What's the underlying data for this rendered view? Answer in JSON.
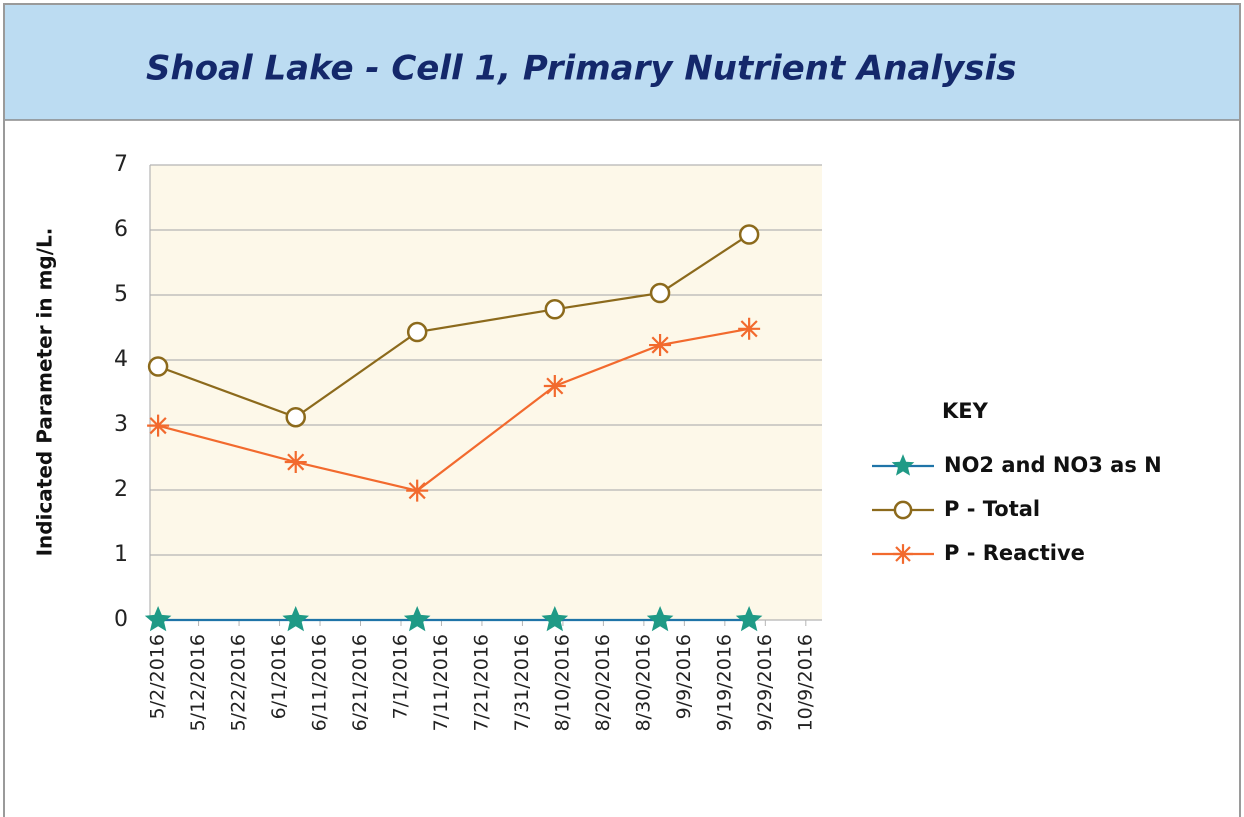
{
  "chart_data": {
    "type": "line",
    "title": "Shoal Lake - Cell 1, Primary Nutrient Analysis",
    "y_label": "Indicated Parameter in mg/L.",
    "legend_title": "KEY",
    "legend": "right",
    "grid": true,
    "x": [
      "2016-05-02",
      "2016-06-05",
      "2016-07-05",
      "2016-08-08",
      "2016-09-03",
      "2016-09-25"
    ],
    "xlim": [
      "2016-04-30",
      "2016-10-13"
    ],
    "xticks": [
      {
        "value": "2016-05-02",
        "label": "5/2/2016"
      },
      {
        "value": "2016-05-12",
        "label": "5/12/2016"
      },
      {
        "value": "2016-05-22",
        "label": "5/22/2016"
      },
      {
        "value": "2016-06-01",
        "label": "6/1/2016"
      },
      {
        "value": "2016-06-11",
        "label": "6/11/2016"
      },
      {
        "value": "2016-06-21",
        "label": "6/21/2016"
      },
      {
        "value": "2016-07-01",
        "label": "7/1/2016"
      },
      {
        "value": "2016-07-11",
        "label": "7/11/2016"
      },
      {
        "value": "2016-07-21",
        "label": "7/21/2016"
      },
      {
        "value": "2016-07-31",
        "label": "7/31/2016"
      },
      {
        "value": "2016-08-10",
        "label": "8/10/2016"
      },
      {
        "value": "2016-08-20",
        "label": "8/20/2016"
      },
      {
        "value": "2016-08-30",
        "label": "8/30/2016"
      },
      {
        "value": "2016-09-09",
        "label": "9/9/2016"
      },
      {
        "value": "2016-09-19",
        "label": "9/19/2016"
      },
      {
        "value": "2016-09-29",
        "label": "9/29/2016"
      },
      {
        "value": "2016-10-09",
        "label": "10/9/2016"
      }
    ],
    "ylim": [
      0,
      7
    ],
    "yticks": [
      0,
      1,
      2,
      3,
      4,
      5,
      6,
      7
    ],
    "series": [
      {
        "name": "NO2 and NO3 as N",
        "color": "#1f9a86",
        "line_color": "#1f74a8",
        "marker": "star",
        "values": [
          0,
          0,
          0,
          0,
          0,
          0
        ]
      },
      {
        "name": "P - Total",
        "color": "#8c6a1c",
        "marker": "circle",
        "values": [
          3.9,
          3.12,
          4.43,
          4.78,
          5.03,
          5.93
        ]
      },
      {
        "name": "P - Reactive",
        "color": "#f26a2e",
        "marker": "asterisk",
        "values": [
          2.99,
          2.43,
          1.99,
          3.6,
          4.23,
          4.48
        ]
      }
    ]
  }
}
